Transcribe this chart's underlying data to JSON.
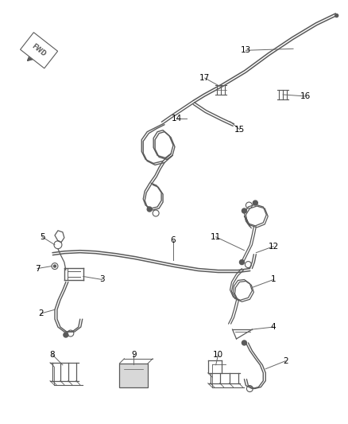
{
  "background_color": "#ffffff",
  "line_color": "#5a5a5a",
  "figsize": [
    4.38,
    5.33
  ],
  "dpi": 100
}
